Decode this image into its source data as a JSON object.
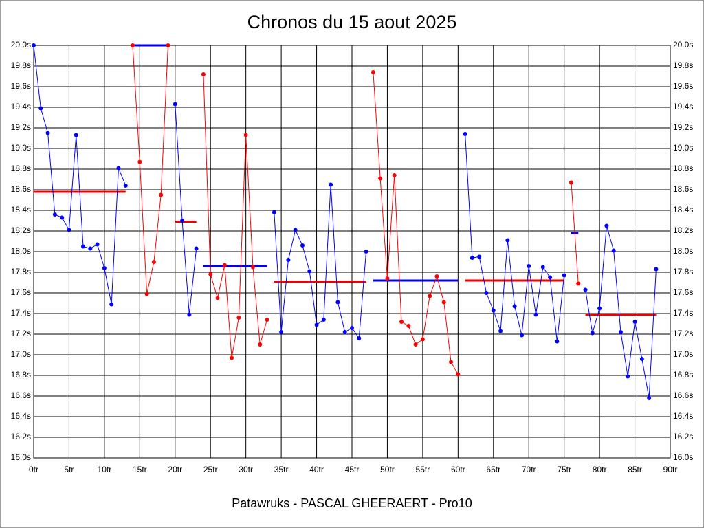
{
  "chart_data": {
    "type": "line",
    "title": "Chronos du 15 aout 2025",
    "subtitle": "Patawruks - PASCAL GHEERAERT - Pro10",
    "x": [
      0,
      1,
      2,
      3,
      4,
      5,
      6,
      7,
      8,
      9,
      10,
      11,
      12,
      13,
      14,
      15,
      16,
      17,
      18,
      19,
      20,
      21,
      22,
      23,
      24,
      25,
      26,
      27,
      28,
      29,
      30,
      31,
      32,
      33,
      34,
      35,
      36,
      37,
      38,
      39,
      40,
      41,
      42,
      43,
      44,
      45,
      46,
      47,
      48,
      49,
      50,
      51,
      52,
      53,
      54,
      55,
      56,
      57,
      58,
      59,
      60,
      61,
      62,
      63,
      64,
      65,
      66,
      67,
      68,
      69,
      70,
      71,
      72,
      73,
      74,
      75,
      76,
      77,
      78,
      79,
      80,
      81,
      82,
      83,
      84,
      85,
      86,
      87,
      88
    ],
    "series": [
      {
        "color": "#0000ff",
        "values": [
          20.0,
          19.39,
          19.15,
          18.36,
          18.33,
          18.21,
          19.13,
          18.05,
          18.03,
          18.07,
          17.84,
          17.49,
          18.81,
          18.64,
          null,
          null,
          null,
          null,
          null,
          null,
          19.43,
          18.3,
          17.39,
          18.03,
          null,
          null,
          null,
          null,
          null,
          null,
          null,
          null,
          null,
          null,
          18.38,
          17.22,
          17.92,
          18.21,
          18.06,
          17.81,
          17.29,
          17.34,
          18.65,
          17.51,
          17.22,
          17.26,
          17.16,
          18.0,
          null,
          null,
          null,
          null,
          null,
          null,
          null,
          null,
          null,
          null,
          null,
          null,
          null,
          19.14,
          17.94,
          17.95,
          17.6,
          17.43,
          17.23,
          18.11,
          17.47,
          17.19,
          17.86,
          17.39,
          17.85,
          17.75,
          17.13,
          17.77,
          null,
          null,
          17.63,
          17.21,
          17.45,
          18.25,
          18.01,
          17.22,
          16.79,
          17.32,
          16.96,
          16.58,
          17.83
        ]
      },
      {
        "color": "#ff0000",
        "values": [
          null,
          null,
          null,
          null,
          null,
          null,
          null,
          null,
          null,
          null,
          null,
          null,
          null,
          null,
          20.0,
          18.87,
          17.59,
          17.9,
          18.55,
          20.0,
          null,
          null,
          null,
          null,
          19.72,
          17.78,
          17.55,
          17.87,
          16.97,
          17.36,
          19.13,
          17.85,
          17.1,
          17.34,
          null,
          null,
          null,
          null,
          null,
          null,
          null,
          null,
          null,
          null,
          null,
          null,
          null,
          null,
          19.74,
          18.71,
          17.74,
          18.74,
          17.32,
          17.28,
          17.1,
          17.15,
          17.57,
          17.76,
          17.51,
          16.93,
          16.81,
          null,
          null,
          null,
          null,
          null,
          null,
          null,
          null,
          null,
          null,
          null,
          null,
          null,
          null,
          null,
          18.67,
          17.69,
          null,
          null,
          null,
          null,
          null,
          null,
          null,
          null,
          null,
          null,
          null
        ]
      }
    ],
    "averages": [
      {
        "start": 0,
        "end": 13,
        "value": 18.58,
        "color": "#ee0000"
      },
      {
        "start": 14,
        "end": 19,
        "value": 20.0,
        "color": "#0000ee"
      },
      {
        "start": 20,
        "end": 23,
        "value": 18.29,
        "color": "#ee0000"
      },
      {
        "start": 24,
        "end": 33,
        "value": 17.86,
        "color": "#0000ee"
      },
      {
        "start": 34,
        "end": 47,
        "value": 17.71,
        "color": "#ee0000"
      },
      {
        "start": 48,
        "end": 60,
        "value": 17.72,
        "color": "#0000ee"
      },
      {
        "start": 61,
        "end": 75,
        "value": 17.72,
        "color": "#ee0000"
      },
      {
        "start": 76,
        "end": 77,
        "value": 18.18,
        "color": "#0000ee"
      },
      {
        "start": 78,
        "end": 88,
        "value": 17.39,
        "color": "#ee0000"
      }
    ],
    "xlim": [
      0,
      90
    ],
    "xticks": [
      {
        "value": 0,
        "label": "0tr"
      },
      {
        "value": 5,
        "label": "5tr"
      },
      {
        "value": 10,
        "label": "10tr"
      },
      {
        "value": 15,
        "label": "15tr"
      },
      {
        "value": 20,
        "label": "20tr"
      },
      {
        "value": 25,
        "label": "25tr"
      },
      {
        "value": 30,
        "label": "30tr"
      },
      {
        "value": 35,
        "label": "35tr"
      },
      {
        "value": 40,
        "label": "40tr"
      },
      {
        "value": 45,
        "label": "45tr"
      },
      {
        "value": 50,
        "label": "50tr"
      },
      {
        "value": 55,
        "label": "55tr"
      },
      {
        "value": 60,
        "label": "60tr"
      },
      {
        "value": 65,
        "label": "65tr"
      },
      {
        "value": 70,
        "label": "70tr"
      },
      {
        "value": 75,
        "label": "75tr"
      },
      {
        "value": 80,
        "label": "80tr"
      },
      {
        "value": 85,
        "label": "85tr"
      },
      {
        "value": 90,
        "label": "90tr"
      }
    ],
    "ylim": [
      16,
      20
    ],
    "yticks": [
      {
        "value": 16.0,
        "label": "16.0s"
      },
      {
        "value": 16.2,
        "label": "16.2s"
      },
      {
        "value": 16.4,
        "label": "16.4s"
      },
      {
        "value": 16.6,
        "label": "16.6s"
      },
      {
        "value": 16.8,
        "label": "16.8s"
      },
      {
        "value": 17.0,
        "label": "17.0s"
      },
      {
        "value": 17.2,
        "label": "17.2s"
      },
      {
        "value": 17.4,
        "label": "17.4s"
      },
      {
        "value": 17.6,
        "label": "17.6s"
      },
      {
        "value": 17.8,
        "label": "17.8s"
      },
      {
        "value": 18.0,
        "label": "18.0s"
      },
      {
        "value": 18.2,
        "label": "18.2s"
      },
      {
        "value": 18.4,
        "label": "18.4s"
      },
      {
        "value": 18.6,
        "label": "18.6s"
      },
      {
        "value": 18.8,
        "label": "18.8s"
      },
      {
        "value": 19.0,
        "label": "19.0s"
      },
      {
        "value": 19.2,
        "label": "19.2s"
      },
      {
        "value": 19.4,
        "label": "19.4s"
      },
      {
        "value": 19.6,
        "label": "19.6s"
      },
      {
        "value": 19.8,
        "label": "19.8s"
      },
      {
        "value": 20.0,
        "label": "20.0s"
      }
    ],
    "grid": true
  }
}
